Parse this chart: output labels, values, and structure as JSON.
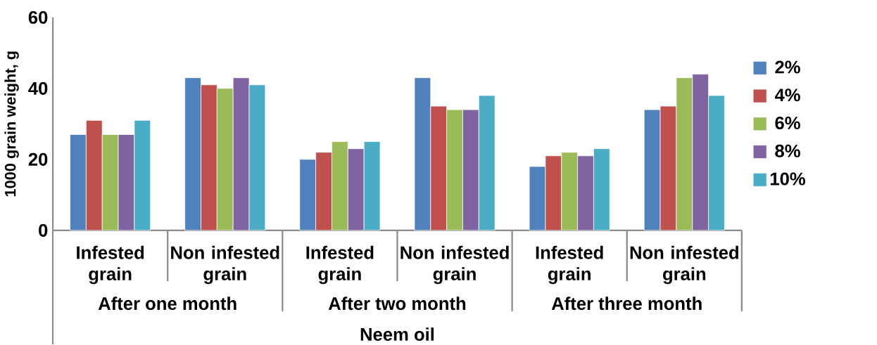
{
  "chart_data": {
    "type": "bar",
    "xlabel": "Neem oil",
    "ylabel": "1000 grain weight, g",
    "categories": [
      "Infested grain",
      "Non infested grain",
      "Infested grain",
      "Non infested grain",
      "Infested grain",
      "Non infested grain"
    ],
    "annotations": [
      "After one month",
      "After two month",
      "After three month"
    ],
    "series": [
      {
        "name": "2%",
        "color": "#4f81bd",
        "values": [
          27,
          43,
          20,
          43,
          18,
          34
        ]
      },
      {
        "name": "4%",
        "color": "#c0504d",
        "values": [
          31,
          41,
          22,
          35,
          21,
          35
        ]
      },
      {
        "name": "6%",
        "color": "#9bbb59",
        "values": [
          27,
          40,
          25,
          34,
          22,
          43
        ]
      },
      {
        "name": "8%",
        "color": "#8064a2",
        "values": [
          27,
          43,
          23,
          34,
          21,
          44
        ]
      },
      {
        "name": "10%",
        "color": "#4bacc6",
        "values": [
          31,
          41,
          25,
          38,
          23,
          38
        ]
      }
    ],
    "ylim": [
      0,
      60
    ],
    "yticks": [
      0,
      20,
      40,
      60
    ],
    "grid": false,
    "legend": "right"
  }
}
